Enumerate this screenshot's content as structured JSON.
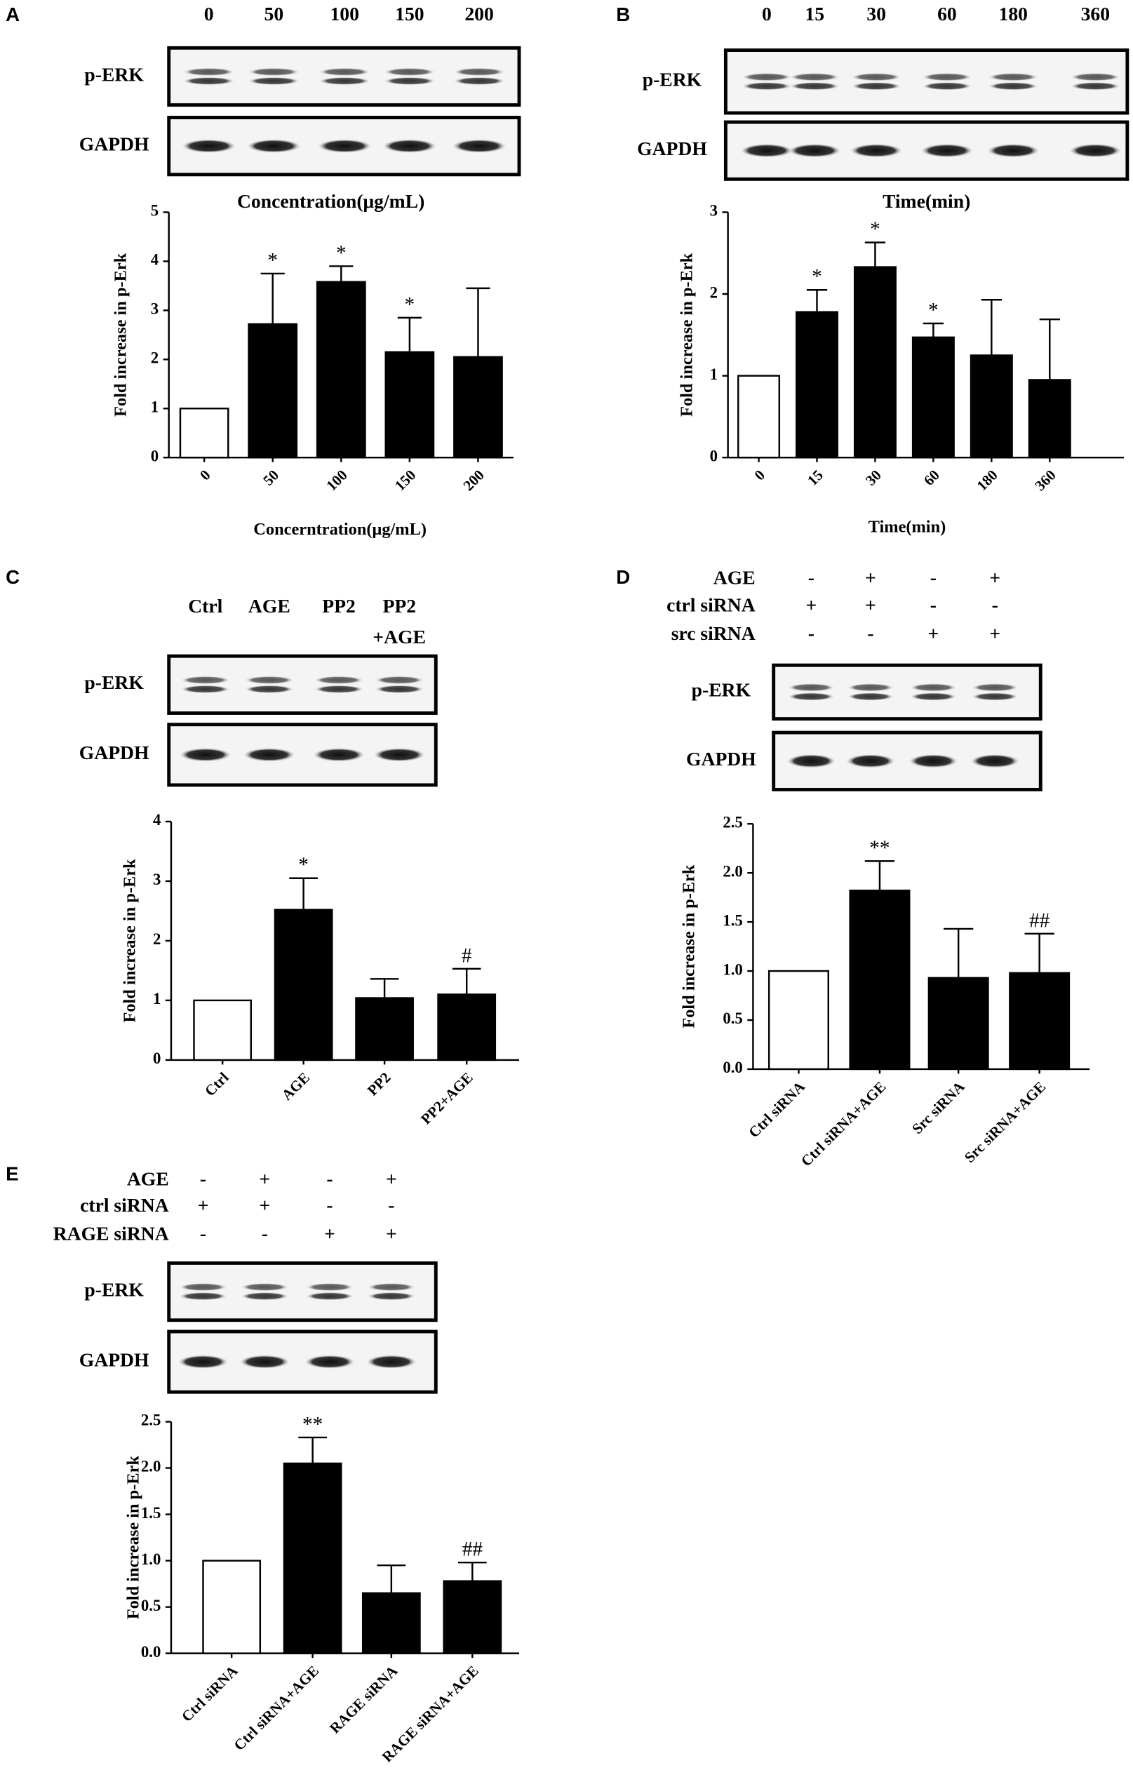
{
  "chart_data": [
    {
      "type": "bar",
      "panel": "A",
      "lanes": [
        "0",
        "50",
        "100",
        "150",
        "200"
      ],
      "blot_rows": [
        "p-ERK",
        "GAPDH"
      ],
      "blot_caption": "Concentration(μg/mL)",
      "ylabel": "Fold increase in p-Erk",
      "xlabel": "Concerntration(μg/mL)",
      "categories": [
        "0",
        "50",
        "100",
        "150",
        "200"
      ],
      "values": [
        1,
        2.72,
        3.58,
        2.15,
        2.05
      ],
      "errors": [
        null,
        1.03,
        0.32,
        0.7,
        1.4
      ],
      "annotations": [
        null,
        "*",
        "*",
        "*",
        null
      ],
      "colors": [
        "#ffffff",
        "#000000",
        "#000000",
        "#000000",
        "#000000"
      ],
      "ylim": [
        0,
        5
      ],
      "yticks": [
        0,
        1,
        2,
        3,
        4,
        5
      ]
    },
    {
      "type": "bar",
      "panel": "B",
      "lanes": [
        "0",
        "15",
        "30",
        "60",
        "180",
        "360"
      ],
      "blot_rows": [
        "p-ERK",
        "GAPDH"
      ],
      "blot_caption": "Time(min)",
      "ylabel": "Fold increase in p-Erk",
      "xlabel": "Time(min)",
      "categories": [
        "0",
        "15",
        "30",
        "60",
        "180",
        "360"
      ],
      "values": [
        1,
        1.78,
        2.33,
        1.47,
        1.25,
        0.95
      ],
      "errors": [
        null,
        0.27,
        0.3,
        0.17,
        0.68,
        0.74
      ],
      "annotations": [
        null,
        "*",
        "*",
        "*",
        null,
        null
      ],
      "colors": [
        "#ffffff",
        "#000000",
        "#000000",
        "#000000",
        "#000000",
        "#000000"
      ],
      "ylim": [
        0,
        3
      ],
      "yticks": [
        0,
        1,
        2,
        3
      ]
    },
    {
      "type": "bar",
      "panel": "C",
      "lanes": [
        [
          "Ctrl"
        ],
        [
          "AGE"
        ],
        [
          "PP2"
        ],
        [
          "PP2",
          "+AGE"
        ]
      ],
      "blot_rows": [
        "p-ERK",
        "GAPDH"
      ],
      "ylabel": "Fold increase in p-Erk",
      "categories": [
        "Ctrl",
        "AGE",
        "PP2",
        "PP2+AGE"
      ],
      "values": [
        1,
        2.52,
        1.04,
        1.1
      ],
      "errors": [
        null,
        0.53,
        0.32,
        0.43
      ],
      "annotations": [
        null,
        "*",
        null,
        "#"
      ],
      "colors": [
        "#ffffff",
        "#000000",
        "#000000",
        "#000000"
      ],
      "ylim": [
        0,
        4
      ],
      "yticks": [
        0,
        1,
        2,
        3,
        4
      ]
    },
    {
      "type": "bar",
      "panel": "D",
      "conditions": [
        {
          "name": "AGE",
          "signs": [
            "-",
            "+",
            "-",
            "+"
          ]
        },
        {
          "name": "ctrl siRNA",
          "signs": [
            "+",
            "+",
            "-",
            "-"
          ]
        },
        {
          "name": "src siRNA",
          "signs": [
            "-",
            "-",
            "+",
            "+"
          ]
        }
      ],
      "blot_rows": [
        "p-ERK",
        "GAPDH"
      ],
      "ylabel": "Fold increase in p-Erk",
      "categories": [
        "Ctrl siRNA",
        "Ctrl siRNA+AGE",
        "Src siRNA",
        "Src siRNA+AGE"
      ],
      "values": [
        1,
        1.82,
        0.93,
        0.98
      ],
      "errors": [
        null,
        0.3,
        0.5,
        0.4
      ],
      "annotations": [
        null,
        "**",
        null,
        "##"
      ],
      "colors": [
        "#ffffff",
        "#000000",
        "#000000",
        "#000000"
      ],
      "ylim": [
        0,
        2.5
      ],
      "yticks": [
        {
          "value": 0,
          "label": "0.0"
        },
        0.5,
        {
          "value": 1,
          "label": "1.0"
        },
        1.5,
        {
          "value": 2,
          "label": "2.0"
        },
        2.5
      ]
    },
    {
      "type": "bar",
      "panel": "E",
      "conditions": [
        {
          "name": "AGE",
          "signs": [
            "-",
            "+",
            "-",
            "+"
          ]
        },
        {
          "name": "ctrl siRNA",
          "signs": [
            "+",
            "+",
            "-",
            "-"
          ]
        },
        {
          "name": "RAGE siRNA",
          "signs": [
            "-",
            "-",
            "+",
            "+"
          ]
        }
      ],
      "blot_rows": [
        "p-ERK",
        "GAPDH"
      ],
      "ylabel": "Fold increase in p-Erk",
      "categories": [
        "Ctrl siRNA",
        "Ctrl siRNA+AGE",
        "RAGE siRNA",
        "RAGE siRNA+AGE"
      ],
      "values": [
        1,
        2.05,
        0.65,
        0.78
      ],
      "errors": [
        null,
        0.28,
        0.3,
        0.2
      ],
      "annotations": [
        null,
        "**",
        null,
        "##"
      ],
      "colors": [
        "#ffffff",
        "#000000",
        "#000000",
        "#000000"
      ],
      "ylim": [
        0,
        2.5
      ],
      "yticks": [
        {
          "value": 0,
          "label": "0.0"
        },
        0.5,
        {
          "value": 1,
          "label": "1.0"
        },
        1.5,
        {
          "value": 2,
          "label": "2.0"
        },
        2.5
      ]
    }
  ]
}
